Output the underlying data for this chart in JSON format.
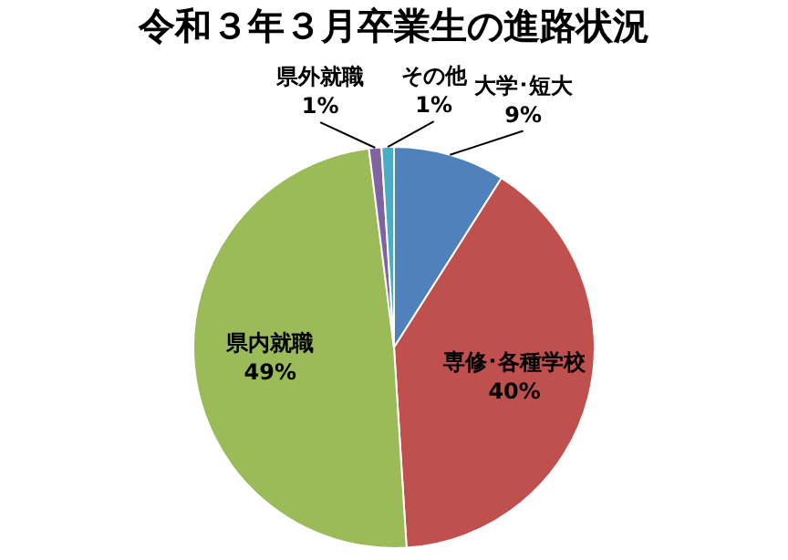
{
  "chart_data": {
    "type": "pie",
    "title": "令和３年３月卒業生の進路状況",
    "categories": [
      "大学･短大",
      "専修･各種学校",
      "県内就職",
      "県外就職",
      "その他"
    ],
    "values": [
      9,
      40,
      49,
      1,
      1
    ],
    "value_labels": [
      "9%",
      "40%",
      "49%",
      "1%",
      "1%"
    ],
    "colors": [
      "#4f81bd",
      "#c0504d",
      "#9bbb59",
      "#8064a2",
      "#4bacc6"
    ],
    "legend": false
  }
}
